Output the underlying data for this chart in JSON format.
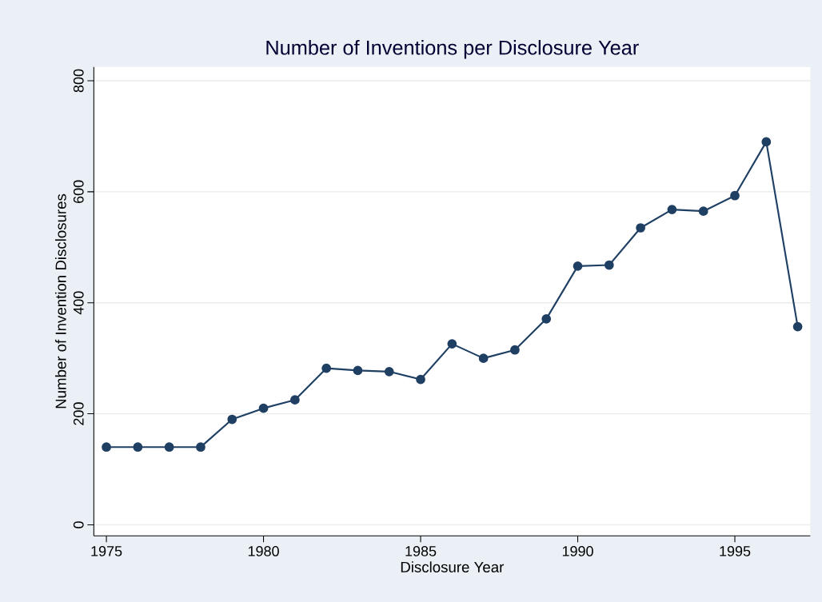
{
  "chart_data": {
    "type": "line",
    "title": "Number of Inventions per Disclosure Year",
    "xlabel": "Disclosure Year",
    "ylabel": "Number of Invention Disclosures",
    "x": [
      1975,
      1976,
      1977,
      1978,
      1979,
      1980,
      1981,
      1982,
      1983,
      1984,
      1985,
      1986,
      1987,
      1988,
      1989,
      1990,
      1991,
      1992,
      1993,
      1994,
      1995,
      1996,
      1997
    ],
    "series": [
      {
        "color": "#1f3f63",
        "values": [
          140,
          140,
          140,
          140,
          190,
          210,
          225,
          282,
          278,
          276,
          262,
          326,
          300,
          315,
          371,
          466,
          468,
          535,
          568,
          565,
          593,
          690,
          357
        ]
      }
    ],
    "xlim": [
      1974.6,
      1997.4
    ],
    "ylim": [
      -20,
      825
    ],
    "xticks": [
      1975,
      1980,
      1985,
      1990,
      1995
    ],
    "yticks": [
      0,
      200,
      400,
      600,
      800
    ],
    "grid": "y",
    "marker": "circle",
    "line_style": "solid"
  }
}
